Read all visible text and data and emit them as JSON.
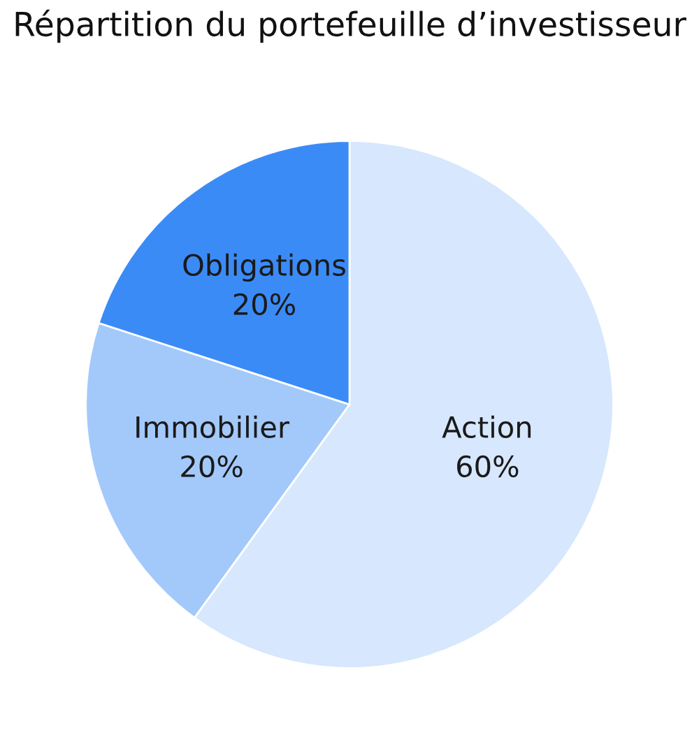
{
  "chart_data": {
    "type": "pie",
    "title": "Répartition du portefeuille d’investisseur",
    "categories": [
      "Action",
      "Immobilier",
      "Obligations"
    ],
    "values": [
      60,
      20,
      20
    ],
    "value_labels": [
      "60%",
      "20%",
      "20%"
    ],
    "colors": [
      "#d7e7fd",
      "#a3c9fb",
      "#3b8bf6"
    ]
  }
}
